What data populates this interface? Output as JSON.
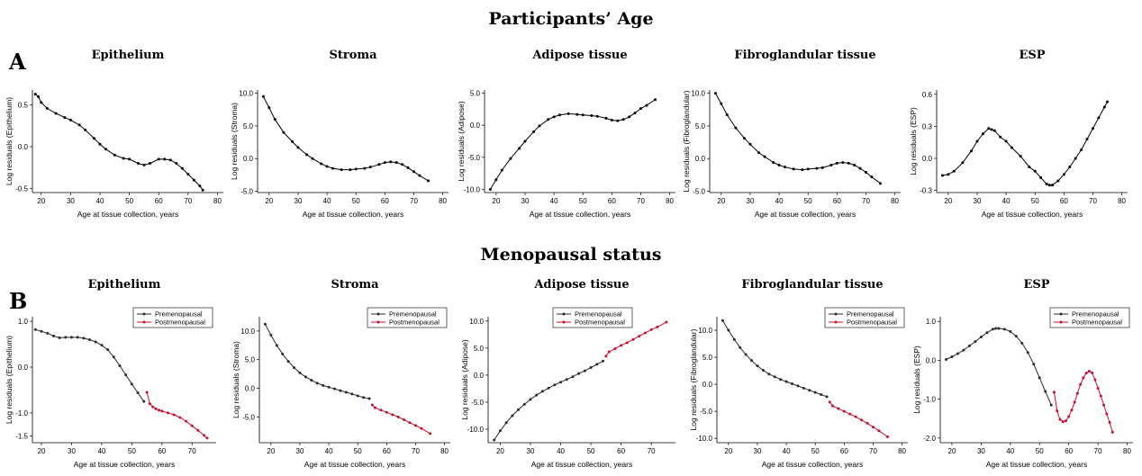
{
  "figure": {
    "section_a_title": "Participants’ Age",
    "section_b_title": "Menopausal status",
    "panel_a_letter": "A",
    "panel_b_letter": "B"
  },
  "colors": {
    "premenopausal": "#2b2b2b",
    "postmenopausal": "#c8102e",
    "line": "#000000"
  },
  "chart_data": [
    {
      "id": "a-epithelium",
      "type": "line",
      "title": "Epithelium",
      "xlabel": "Age at tissue collection, years",
      "ylabel": "Log residuals (Epithelium)",
      "xlim": [
        17,
        82
      ],
      "ylim": [
        -0.55,
        0.68
      ],
      "xticks": [
        20,
        30,
        40,
        50,
        60,
        70,
        80
      ],
      "yticks": [
        -0.5,
        0.0,
        0.5
      ],
      "ytick_labels": [
        "-0.5",
        "0.0",
        "0.5"
      ],
      "series": [
        {
          "x": [
            18,
            19,
            20,
            22,
            25,
            28,
            30,
            33,
            35,
            38,
            40,
            42,
            45,
            48,
            50,
            53,
            55,
            57,
            60,
            62,
            64,
            66,
            68,
            70,
            72,
            74,
            75
          ],
          "y": [
            0.63,
            0.6,
            0.53,
            0.46,
            0.4,
            0.35,
            0.32,
            0.26,
            0.2,
            0.1,
            0.03,
            -0.03,
            -0.1,
            -0.14,
            -0.15,
            -0.2,
            -0.22,
            -0.2,
            -0.15,
            -0.15,
            -0.16,
            -0.2,
            -0.26,
            -0.33,
            -0.4,
            -0.47,
            -0.52
          ]
        }
      ]
    },
    {
      "id": "a-stroma",
      "type": "line",
      "title": "Stroma",
      "xlabel": "Age at tissue collection, years",
      "ylabel": "Log residuals (Stroma)",
      "xlim": [
        16,
        82
      ],
      "ylim": [
        -5.2,
        10.5
      ],
      "xticks": [
        20,
        30,
        40,
        50,
        60,
        70,
        80
      ],
      "yticks": [
        -5,
        0,
        5,
        10
      ],
      "ytick_labels": [
        "-5.0",
        "0.0",
        "5.0",
        "10.0"
      ],
      "series": [
        {
          "x": [
            18,
            20,
            22,
            25,
            28,
            30,
            33,
            35,
            38,
            40,
            42,
            45,
            48,
            50,
            53,
            55,
            58,
            60,
            62,
            64,
            66,
            68,
            70,
            72,
            75
          ],
          "y": [
            9.5,
            7.8,
            6.0,
            4.0,
            2.6,
            1.7,
            0.6,
            0.0,
            -0.8,
            -1.2,
            -1.5,
            -1.7,
            -1.7,
            -1.6,
            -1.5,
            -1.3,
            -0.9,
            -0.6,
            -0.5,
            -0.6,
            -0.9,
            -1.4,
            -2.0,
            -2.6,
            -3.4
          ]
        }
      ]
    },
    {
      "id": "a-adipose",
      "type": "line",
      "title": "Adipose tissue",
      "xlabel": "Age at tissue collection, years",
      "ylabel": "Log residuals (Adipose)",
      "xlim": [
        16,
        82
      ],
      "ylim": [
        -10.5,
        5.5
      ],
      "xticks": [
        20,
        30,
        40,
        50,
        60,
        70,
        80
      ],
      "yticks": [
        -10,
        -5,
        0,
        5
      ],
      "ytick_labels": [
        "-10.0",
        "-5.0",
        "0.0",
        "5.0"
      ],
      "series": [
        {
          "x": [
            18,
            20,
            22,
            25,
            28,
            30,
            33,
            35,
            38,
            40,
            42,
            45,
            48,
            50,
            53,
            55,
            58,
            60,
            62,
            64,
            66,
            68,
            70,
            72,
            75
          ],
          "y": [
            -10.0,
            -8.5,
            -7.0,
            -5.2,
            -3.6,
            -2.5,
            -1.0,
            -0.1,
            0.9,
            1.3,
            1.6,
            1.8,
            1.7,
            1.6,
            1.5,
            1.4,
            1.1,
            0.8,
            0.7,
            0.9,
            1.3,
            1.9,
            2.6,
            3.1,
            4.0
          ]
        }
      ]
    },
    {
      "id": "a-fibroglandular",
      "type": "line",
      "title": "Fibroglandular tissue",
      "xlabel": "Age at tissue collection, years",
      "ylabel": "Log residuals (Fibroglandular)",
      "xlim": [
        16,
        82
      ],
      "ylim": [
        -5.2,
        10.5
      ],
      "xticks": [
        20,
        30,
        40,
        50,
        60,
        70,
        80
      ],
      "yticks": [
        -5,
        0,
        5,
        10
      ],
      "ytick_labels": [
        "-5.0",
        "0.0",
        "5.0",
        "10.0"
      ],
      "series": [
        {
          "x": [
            18,
            20,
            22,
            25,
            28,
            30,
            33,
            35,
            38,
            40,
            42,
            45,
            48,
            50,
            53,
            55,
            58,
            60,
            62,
            64,
            66,
            68,
            70,
            72,
            75
          ],
          "y": [
            10.0,
            8.4,
            6.7,
            4.7,
            3.1,
            2.2,
            0.9,
            0.3,
            -0.6,
            -1.0,
            -1.3,
            -1.6,
            -1.7,
            -1.6,
            -1.5,
            -1.4,
            -1.0,
            -0.7,
            -0.6,
            -0.7,
            -1.0,
            -1.5,
            -2.1,
            -2.8,
            -3.8
          ]
        }
      ]
    },
    {
      "id": "a-esp",
      "type": "line",
      "title": "ESP",
      "xlabel": "Age at tissue collection, years",
      "ylabel": "Log residuals (ESP)",
      "xlim": [
        16,
        82
      ],
      "ylim": [
        -0.32,
        0.64
      ],
      "xticks": [
        20,
        30,
        40,
        50,
        60,
        70,
        80
      ],
      "yticks": [
        -0.3,
        0.0,
        0.3,
        0.6
      ],
      "ytick_labels": [
        "-0.3",
        "0.0",
        "0.3",
        "0.6"
      ],
      "series": [
        {
          "x": [
            18,
            20,
            22,
            25,
            28,
            30,
            32,
            34,
            35,
            36,
            38,
            40,
            42,
            45,
            48,
            50,
            52,
            54,
            55,
            56,
            58,
            60,
            62,
            64,
            66,
            68,
            70,
            72,
            74,
            75
          ],
          "y": [
            -0.16,
            -0.15,
            -0.12,
            -0.04,
            0.07,
            0.16,
            0.23,
            0.28,
            0.27,
            0.26,
            0.2,
            0.16,
            0.1,
            0.02,
            -0.08,
            -0.12,
            -0.18,
            -0.24,
            -0.25,
            -0.25,
            -0.21,
            -0.15,
            -0.08,
            0.0,
            0.08,
            0.18,
            0.28,
            0.38,
            0.48,
            0.53
          ]
        }
      ]
    },
    {
      "id": "b-epithelium",
      "type": "line",
      "title": "Epithelium",
      "xlabel": "Age at tissue collection, years",
      "ylabel": "Log residuals (Epithelium)",
      "xlim": [
        17,
        78
      ],
      "ylim": [
        -1.65,
        1.1
      ],
      "xticks": [
        20,
        30,
        40,
        50,
        60,
        70
      ],
      "yticks": [
        -1.5,
        -1.0,
        0.0,
        1.0
      ],
      "ytick_labels": [
        "-1.5",
        "-1.0",
        "0.0",
        "1.0"
      ],
      "legend": {
        "position": "top-right",
        "entries": [
          "Premenopausal",
          "Postmenopausal"
        ]
      },
      "series": [
        {
          "name": "Premenopausal",
          "color_key": "premenopausal",
          "x": [
            18,
            20,
            22,
            24,
            26,
            28,
            30,
            32,
            34,
            36,
            38,
            40,
            42,
            44,
            46,
            48,
            50,
            52,
            54
          ],
          "y": [
            0.82,
            0.78,
            0.74,
            0.68,
            0.64,
            0.65,
            0.65,
            0.65,
            0.63,
            0.6,
            0.55,
            0.48,
            0.38,
            0.22,
            0.03,
            -0.17,
            -0.37,
            -0.56,
            -0.75
          ]
        },
        {
          "name": "Postmenopausal",
          "color_key": "postmenopausal",
          "x": [
            55,
            56,
            57,
            58,
            59,
            60,
            62,
            64,
            66,
            68,
            70,
            72,
            74,
            75
          ],
          "y": [
            -0.55,
            -0.8,
            -0.87,
            -0.91,
            -0.94,
            -0.96,
            -1.0,
            -1.04,
            -1.1,
            -1.18,
            -1.28,
            -1.38,
            -1.49,
            -1.55
          ]
        }
      ]
    },
    {
      "id": "b-stroma",
      "type": "line",
      "title": "Stroma",
      "xlabel": "Age at tissue collection, years",
      "ylabel": "Log residuals (Stroma)",
      "xlim": [
        16,
        82
      ],
      "ylim": [
        -9.5,
        12.5
      ],
      "xticks": [
        20,
        30,
        40,
        50,
        60,
        70,
        80
      ],
      "yticks": [
        -5,
        0,
        5,
        10
      ],
      "ytick_labels": [
        "-5.0",
        "0.0",
        "5.0",
        "10.0"
      ],
      "legend": {
        "position": "top-right",
        "entries": [
          "Premenopausal",
          "Postmenopausal"
        ]
      },
      "series": [
        {
          "name": "Premenopausal",
          "color_key": "premenopausal",
          "x": [
            18,
            20,
            22,
            24,
            26,
            28,
            30,
            32,
            34,
            36,
            38,
            40,
            42,
            44,
            46,
            48,
            50,
            52,
            54
          ],
          "y": [
            11.2,
            9.3,
            7.5,
            6.0,
            4.7,
            3.6,
            2.7,
            2.0,
            1.4,
            0.9,
            0.5,
            0.2,
            -0.1,
            -0.4,
            -0.7,
            -1.0,
            -1.3,
            -1.6,
            -1.8
          ]
        },
        {
          "name": "Postmenopausal",
          "color_key": "postmenopausal",
          "x": [
            55,
            56,
            58,
            60,
            62,
            64,
            66,
            68,
            70,
            72,
            75
          ],
          "y": [
            -2.9,
            -3.4,
            -3.8,
            -4.2,
            -4.6,
            -5.0,
            -5.5,
            -6.0,
            -6.5,
            -7.0,
            -7.9
          ]
        }
      ]
    },
    {
      "id": "b-adipose",
      "type": "line",
      "title": "Adipose tissue",
      "xlabel": "Age at tissue collection, years",
      "ylabel": "Log residuals (Adipose)",
      "xlim": [
        16,
        78
      ],
      "ylim": [
        -12.5,
        10.8
      ],
      "xticks": [
        20,
        30,
        40,
        50,
        60,
        70
      ],
      "yticks": [
        -10,
        -5,
        0,
        5,
        10
      ],
      "ytick_labels": [
        "-10.0",
        "-5.0",
        "0.0",
        "5.0",
        "10.0"
      ],
      "legend": {
        "position": "top-left",
        "entries": [
          "Premenopausal",
          "Postmenopausal"
        ]
      },
      "series": [
        {
          "name": "Premenopausal",
          "color_key": "premenopausal",
          "x": [
            18,
            20,
            22,
            24,
            26,
            28,
            30,
            32,
            34,
            36,
            38,
            40,
            42,
            44,
            46,
            48,
            50,
            52,
            54
          ],
          "y": [
            -12.0,
            -10.3,
            -8.8,
            -7.5,
            -6.4,
            -5.4,
            -4.5,
            -3.7,
            -3.0,
            -2.4,
            -1.8,
            -1.3,
            -0.8,
            -0.3,
            0.3,
            0.8,
            1.4,
            2.0,
            2.6
          ]
        },
        {
          "name": "Postmenopausal",
          "color_key": "postmenopausal",
          "x": [
            55,
            56,
            58,
            60,
            62,
            64,
            66,
            68,
            70,
            72,
            75
          ],
          "y": [
            3.5,
            4.3,
            4.9,
            5.5,
            6.0,
            6.6,
            7.2,
            7.8,
            8.4,
            8.9,
            9.8
          ]
        }
      ]
    },
    {
      "id": "b-fibroglandular",
      "type": "line",
      "title": "Fibroglandular tissue",
      "xlabel": "Age at tissue collection, years",
      "ylabel": "Log residuals (Fibroglandular)",
      "xlim": [
        16,
        82
      ],
      "ylim": [
        -10.8,
        12.5
      ],
      "xticks": [
        20,
        30,
        40,
        50,
        60,
        70,
        80
      ],
      "yticks": [
        -10,
        -5,
        0,
        5,
        10
      ],
      "ytick_labels": [
        "-10.0",
        "-5.0",
        "0.0",
        "5.0",
        "10.0"
      ],
      "legend": {
        "position": "top-right",
        "entries": [
          "Premenopausal",
          "Postmenopausal"
        ]
      },
      "series": [
        {
          "name": "Premenopausal",
          "color_key": "premenopausal",
          "x": [
            18,
            20,
            22,
            24,
            26,
            28,
            30,
            32,
            34,
            36,
            38,
            40,
            42,
            44,
            46,
            48,
            50,
            52,
            54
          ],
          "y": [
            11.8,
            10.0,
            8.3,
            6.8,
            5.5,
            4.4,
            3.4,
            2.6,
            1.9,
            1.4,
            0.9,
            0.5,
            0.1,
            -0.3,
            -0.7,
            -1.1,
            -1.5,
            -1.9,
            -2.3
          ]
        },
        {
          "name": "Postmenopausal",
          "color_key": "postmenopausal",
          "x": [
            55,
            56,
            58,
            60,
            62,
            64,
            66,
            68,
            70,
            72,
            75
          ],
          "y": [
            -3.3,
            -4.0,
            -4.5,
            -5.0,
            -5.5,
            -6.0,
            -6.6,
            -7.2,
            -7.9,
            -8.6,
            -9.7
          ]
        }
      ]
    },
    {
      "id": "b-esp",
      "type": "line",
      "title": "ESP",
      "xlabel": "Age at tissue collection, years",
      "ylabel": "Log residuals (ESP)",
      "xlim": [
        16,
        82
      ],
      "ylim": [
        -2.12,
        1.12
      ],
      "xticks": [
        20,
        30,
        40,
        50,
        60,
        70,
        80
      ],
      "yticks": [
        -2.0,
        -1.0,
        0.0,
        1.0
      ],
      "ytick_labels": [
        "-2.0",
        "-1.0",
        "0.0",
        "1.0"
      ],
      "legend": {
        "position": "top-right",
        "entries": [
          "Premenopausal",
          "Postmenopausal"
        ]
      },
      "series": [
        {
          "name": "Premenopausal",
          "color_key": "premenopausal",
          "x": [
            18,
            20,
            22,
            24,
            26,
            28,
            30,
            32,
            34,
            35,
            36,
            38,
            40,
            42,
            44,
            46,
            48,
            50,
            52,
            54
          ],
          "y": [
            0.02,
            0.09,
            0.17,
            0.26,
            0.37,
            0.48,
            0.6,
            0.71,
            0.8,
            0.82,
            0.82,
            0.8,
            0.74,
            0.62,
            0.44,
            0.2,
            -0.1,
            -0.45,
            -0.8,
            -1.15
          ]
        },
        {
          "name": "Postmenopausal",
          "color_key": "postmenopausal",
          "x": [
            55,
            56,
            57,
            58,
            59,
            60,
            61,
            62,
            63,
            64,
            65,
            66,
            67,
            68,
            69,
            70,
            71,
            72,
            73,
            74,
            75
          ],
          "y": [
            -0.82,
            -1.3,
            -1.52,
            -1.58,
            -1.56,
            -1.45,
            -1.28,
            -1.08,
            -0.85,
            -0.62,
            -0.45,
            -0.33,
            -0.28,
            -0.32,
            -0.5,
            -0.72,
            -0.92,
            -1.15,
            -1.38,
            -1.6,
            -1.85
          ]
        }
      ]
    }
  ]
}
